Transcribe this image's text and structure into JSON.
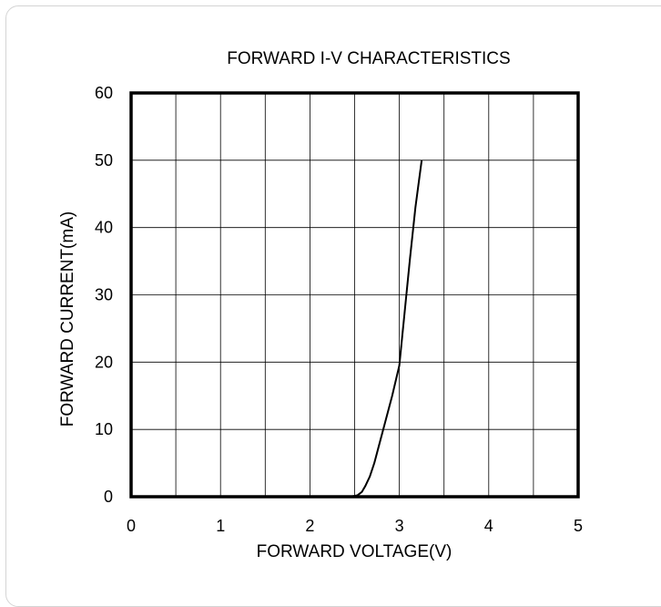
{
  "chart_data": {
    "type": "line",
    "title": "FORWARD I-V CHARACTERISTICS",
    "xlabel": "FORWARD VOLTAGE(V)",
    "ylabel": "FORWARD CURRENT(mA)",
    "xlim": [
      0,
      5
    ],
    "ylim": [
      0,
      60
    ],
    "xticks": [
      "0",
      "1",
      "2",
      "3",
      "4",
      "5"
    ],
    "yticks": [
      "0",
      "10",
      "20",
      "30",
      "40",
      "50",
      "60"
    ],
    "x_minor_grid_step": 0.5,
    "grid": true,
    "legend": "none",
    "series": [
      {
        "x": [
          2.45,
          2.53,
          2.58,
          2.62,
          2.67,
          2.72,
          2.78,
          2.85,
          2.92,
          3.0,
          3.06,
          3.12,
          3.18,
          3.25
        ],
        "y": [
          0,
          0.2,
          0.7,
          1.6,
          3.0,
          5.0,
          8.0,
          11.5,
          15.0,
          19.5,
          27.5,
          35.5,
          43.0,
          50.0
        ]
      }
    ],
    "colors": {
      "line": "#000000",
      "grid": "#000000",
      "frame": "#000000"
    }
  }
}
